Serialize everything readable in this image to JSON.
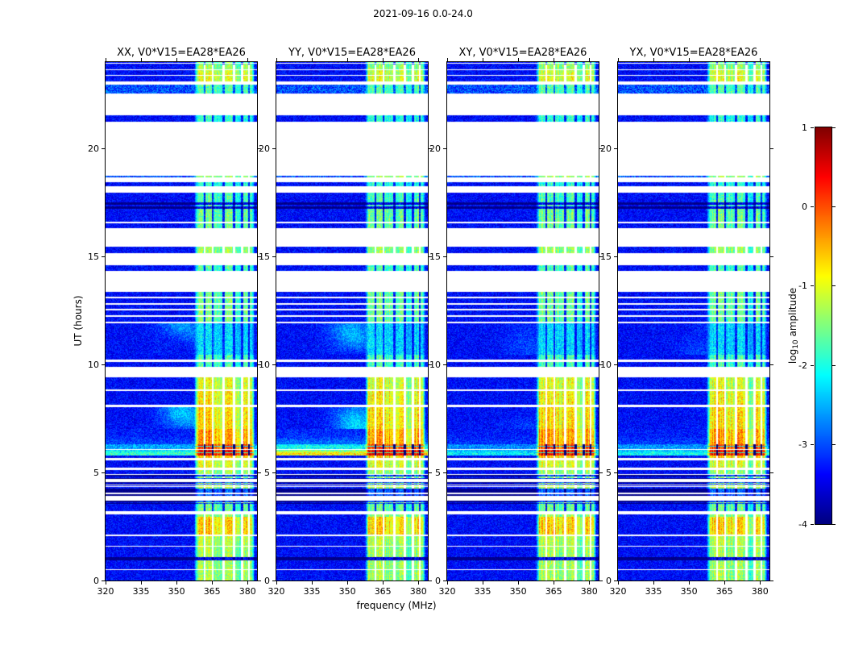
{
  "chart_data": {
    "type": "heatmap",
    "title": "2021-09-16 0.0-24.0",
    "xlabel": "frequency (MHz)",
    "ylabel": "UT (hours)",
    "x_range": [
      320,
      384
    ],
    "y_range": [
      0,
      24
    ],
    "x_ticks": [
      320,
      335,
      350,
      365,
      380
    ],
    "y_ticks": [
      0,
      5,
      10,
      15,
      20
    ],
    "colormap": "jet",
    "grid": false,
    "panels": [
      {
        "id": "XX",
        "title": "XX, V0*V15=EA28*EA26",
        "fullband_scale": 0.55,
        "diffuse": 1.0
      },
      {
        "id": "YY",
        "title": "YY, V0*V15=EA28*EA26",
        "fullband_scale": 1.0,
        "diffuse": 1.0
      },
      {
        "id": "XY",
        "title": "XY, V0*V15=EA28*EA26",
        "fullband_scale": 0.4,
        "diffuse": 0.3
      },
      {
        "id": "YX",
        "title": "YX, V0*V15=EA28*EA26",
        "fullband_scale": 0.45,
        "diffuse": 0.3
      }
    ],
    "colorbar": {
      "label_prefix": "log",
      "label_sub": "10",
      "label_suffix": " amplitude",
      "ticks": [
        1,
        0,
        -1,
        -2,
        -3,
        -4
      ],
      "vmin": -4,
      "vmax": 1
    },
    "rfi_band": {
      "f0": 357.5,
      "f1": 383.0,
      "subbands": [
        [
          357.5,
          361.9,
          0.9
        ],
        [
          361.9,
          365.4,
          1.0
        ],
        [
          365.4,
          369.9,
          0.85
        ],
        [
          369.9,
          374.3,
          0.95
        ],
        [
          374.3,
          377.7,
          0.7
        ],
        [
          377.7,
          380.6,
          0.92
        ],
        [
          380.6,
          383.0,
          0.8
        ]
      ],
      "notches": [
        [
          361.9,
          0.3
        ],
        [
          365.4,
          0.35
        ],
        [
          369.9,
          0.4
        ],
        [
          374.3,
          0.35
        ],
        [
          377.7,
          0.4
        ],
        [
          380.6,
          0.25
        ]
      ]
    },
    "segment_fields": [
      "t_start_hours",
      "t_end_hours",
      "kind",
      "rfi_intensity",
      "fullband_intensity",
      "diffuse_intensity"
    ],
    "time_segments": [
      [
        0.0,
        0.48,
        "noise",
        0.62
      ],
      [
        0.48,
        0.54,
        "gap",
        0
      ],
      [
        0.54,
        0.95,
        "noise",
        0.62
      ],
      [
        0.95,
        1.08,
        "dark",
        0.15
      ],
      [
        1.08,
        1.55,
        "noise",
        0.62
      ],
      [
        1.55,
        1.61,
        "gap",
        0
      ],
      [
        1.61,
        2.05,
        "noise",
        0.65
      ],
      [
        2.05,
        2.12,
        "gap",
        0
      ],
      [
        2.12,
        2.95,
        "noise",
        0.8
      ],
      [
        2.95,
        3.06,
        "noise",
        0.6
      ],
      [
        3.06,
        3.22,
        "gap",
        0
      ],
      [
        3.22,
        3.55,
        "noise",
        0.55
      ],
      [
        3.55,
        3.72,
        "stripes",
        0.6
      ],
      [
        3.72,
        3.85,
        "gap",
        0
      ],
      [
        3.85,
        4.55,
        "stripes",
        0.65
      ],
      [
        4.55,
        4.72,
        "gap",
        0
      ],
      [
        4.72,
        5.12,
        "stripes",
        0.6
      ],
      [
        5.12,
        5.22,
        "gap",
        0
      ],
      [
        5.22,
        5.58,
        "noise",
        0.7
      ],
      [
        5.58,
        5.68,
        "gap",
        0
      ],
      [
        5.68,
        5.78,
        "noise",
        0.8
      ],
      [
        5.78,
        6.05,
        "hot",
        1.0,
        1.0,
        0
      ],
      [
        6.05,
        6.1,
        "gap",
        0
      ],
      [
        6.1,
        6.32,
        "hot",
        0.93,
        0.45,
        0
      ],
      [
        6.32,
        7.0,
        "noise",
        0.85,
        0.22,
        0
      ],
      [
        7.0,
        8.02,
        "noise",
        0.78,
        0,
        1.0
      ],
      [
        8.02,
        8.12,
        "gap",
        0
      ],
      [
        8.12,
        8.78,
        "noise",
        0.75
      ],
      [
        8.78,
        8.84,
        "gap",
        0
      ],
      [
        8.84,
        9.42,
        "noise",
        0.7
      ],
      [
        9.42,
        9.9,
        "gap",
        0
      ],
      [
        9.9,
        10.12,
        "noise",
        0.5
      ],
      [
        10.12,
        10.22,
        "gap",
        0
      ],
      [
        10.22,
        10.45,
        "noise",
        0.5
      ],
      [
        10.45,
        11.9,
        "noise",
        0.35,
        0,
        1.0
      ],
      [
        11.9,
        12.0,
        "gap",
        0
      ],
      [
        12.0,
        12.22,
        "noise",
        0.55
      ],
      [
        12.22,
        12.28,
        "gap",
        0
      ],
      [
        12.28,
        12.5,
        "noise",
        0.55
      ],
      [
        12.5,
        12.56,
        "gap",
        0
      ],
      [
        12.56,
        12.78,
        "noise",
        0.55
      ],
      [
        12.78,
        12.84,
        "gap",
        0
      ],
      [
        12.84,
        13.06,
        "noise",
        0.55
      ],
      [
        13.06,
        13.12,
        "gap",
        0
      ],
      [
        13.12,
        13.38,
        "noise",
        0.55
      ],
      [
        13.38,
        14.35,
        "gap",
        0
      ],
      [
        14.35,
        14.6,
        "noise",
        0.5
      ],
      [
        14.6,
        15.15,
        "gap",
        0
      ],
      [
        15.15,
        15.45,
        "noise",
        0.6
      ],
      [
        15.45,
        16.3,
        "gap",
        0
      ],
      [
        16.3,
        16.55,
        "noise",
        0.55
      ],
      [
        16.55,
        16.6,
        "gap",
        0
      ],
      [
        16.6,
        17.22,
        "noise",
        0.55
      ],
      [
        17.22,
        17.32,
        "dark",
        0.2
      ],
      [
        17.32,
        17.38,
        "noise",
        0.5
      ],
      [
        17.38,
        17.52,
        "dark",
        0.2
      ],
      [
        17.52,
        17.95,
        "noise",
        0.5
      ],
      [
        17.95,
        18.25,
        "gap",
        0
      ],
      [
        18.25,
        18.45,
        "noise",
        0.45
      ],
      [
        18.45,
        18.65,
        "gap",
        0
      ],
      [
        18.65,
        18.74,
        "cyan",
        0.6
      ],
      [
        18.74,
        21.25,
        "gap",
        0
      ],
      [
        21.25,
        21.55,
        "noise",
        0.45
      ],
      [
        21.55,
        22.55,
        "gap",
        0
      ],
      [
        22.55,
        22.95,
        "cyan",
        0.5
      ],
      [
        22.95,
        23.1,
        "gap",
        0
      ],
      [
        23.1,
        23.35,
        "noise",
        0.7
      ],
      [
        23.35,
        23.42,
        "gap",
        0
      ],
      [
        23.42,
        23.62,
        "noise",
        0.68
      ],
      [
        23.62,
        23.68,
        "gap",
        0
      ],
      [
        23.68,
        23.88,
        "noise",
        0.6
      ],
      [
        23.88,
        24.01,
        "stripes",
        0.55
      ]
    ]
  }
}
